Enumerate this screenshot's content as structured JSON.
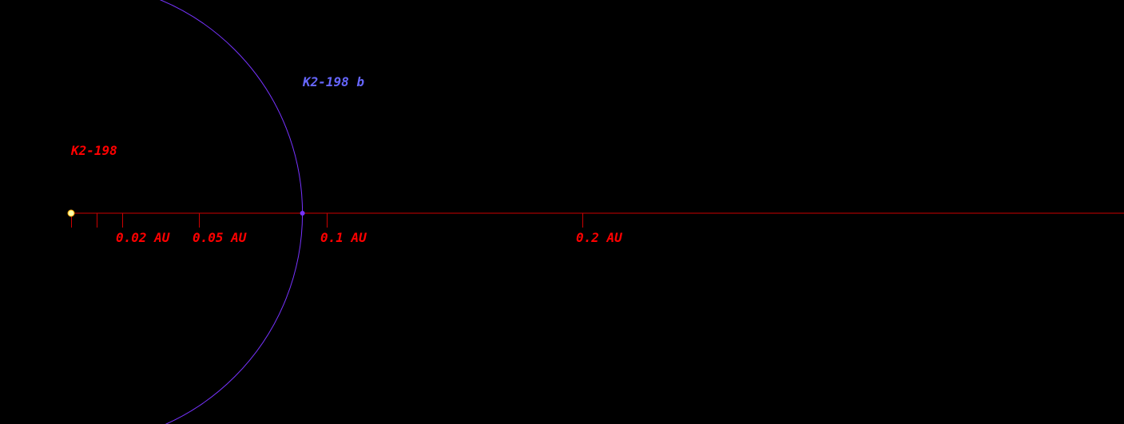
{
  "star": {
    "name": "K2-198",
    "color": "#ffffaa",
    "label_color": "#ff0000"
  },
  "planet": {
    "name": "K2-198 b",
    "semi_major_axis_au": 0.0905,
    "orbit_color": "#7733ff",
    "label_color": "#6666ff"
  },
  "scale_axis": {
    "color": "#cc0000",
    "label_color": "#ff0000",
    "ticks_au": [
      0,
      0.01,
      0.02,
      0.05,
      0.1,
      0.2
    ],
    "labeled_ticks": [
      {
        "value_au": 0.02,
        "label": "0.02 AU"
      },
      {
        "value_au": 0.05,
        "label": "0.05 AU"
      },
      {
        "value_au": 0.1,
        "label": "0.1 AU"
      },
      {
        "value_au": 0.2,
        "label": "0.2 AU"
      }
    ]
  }
}
